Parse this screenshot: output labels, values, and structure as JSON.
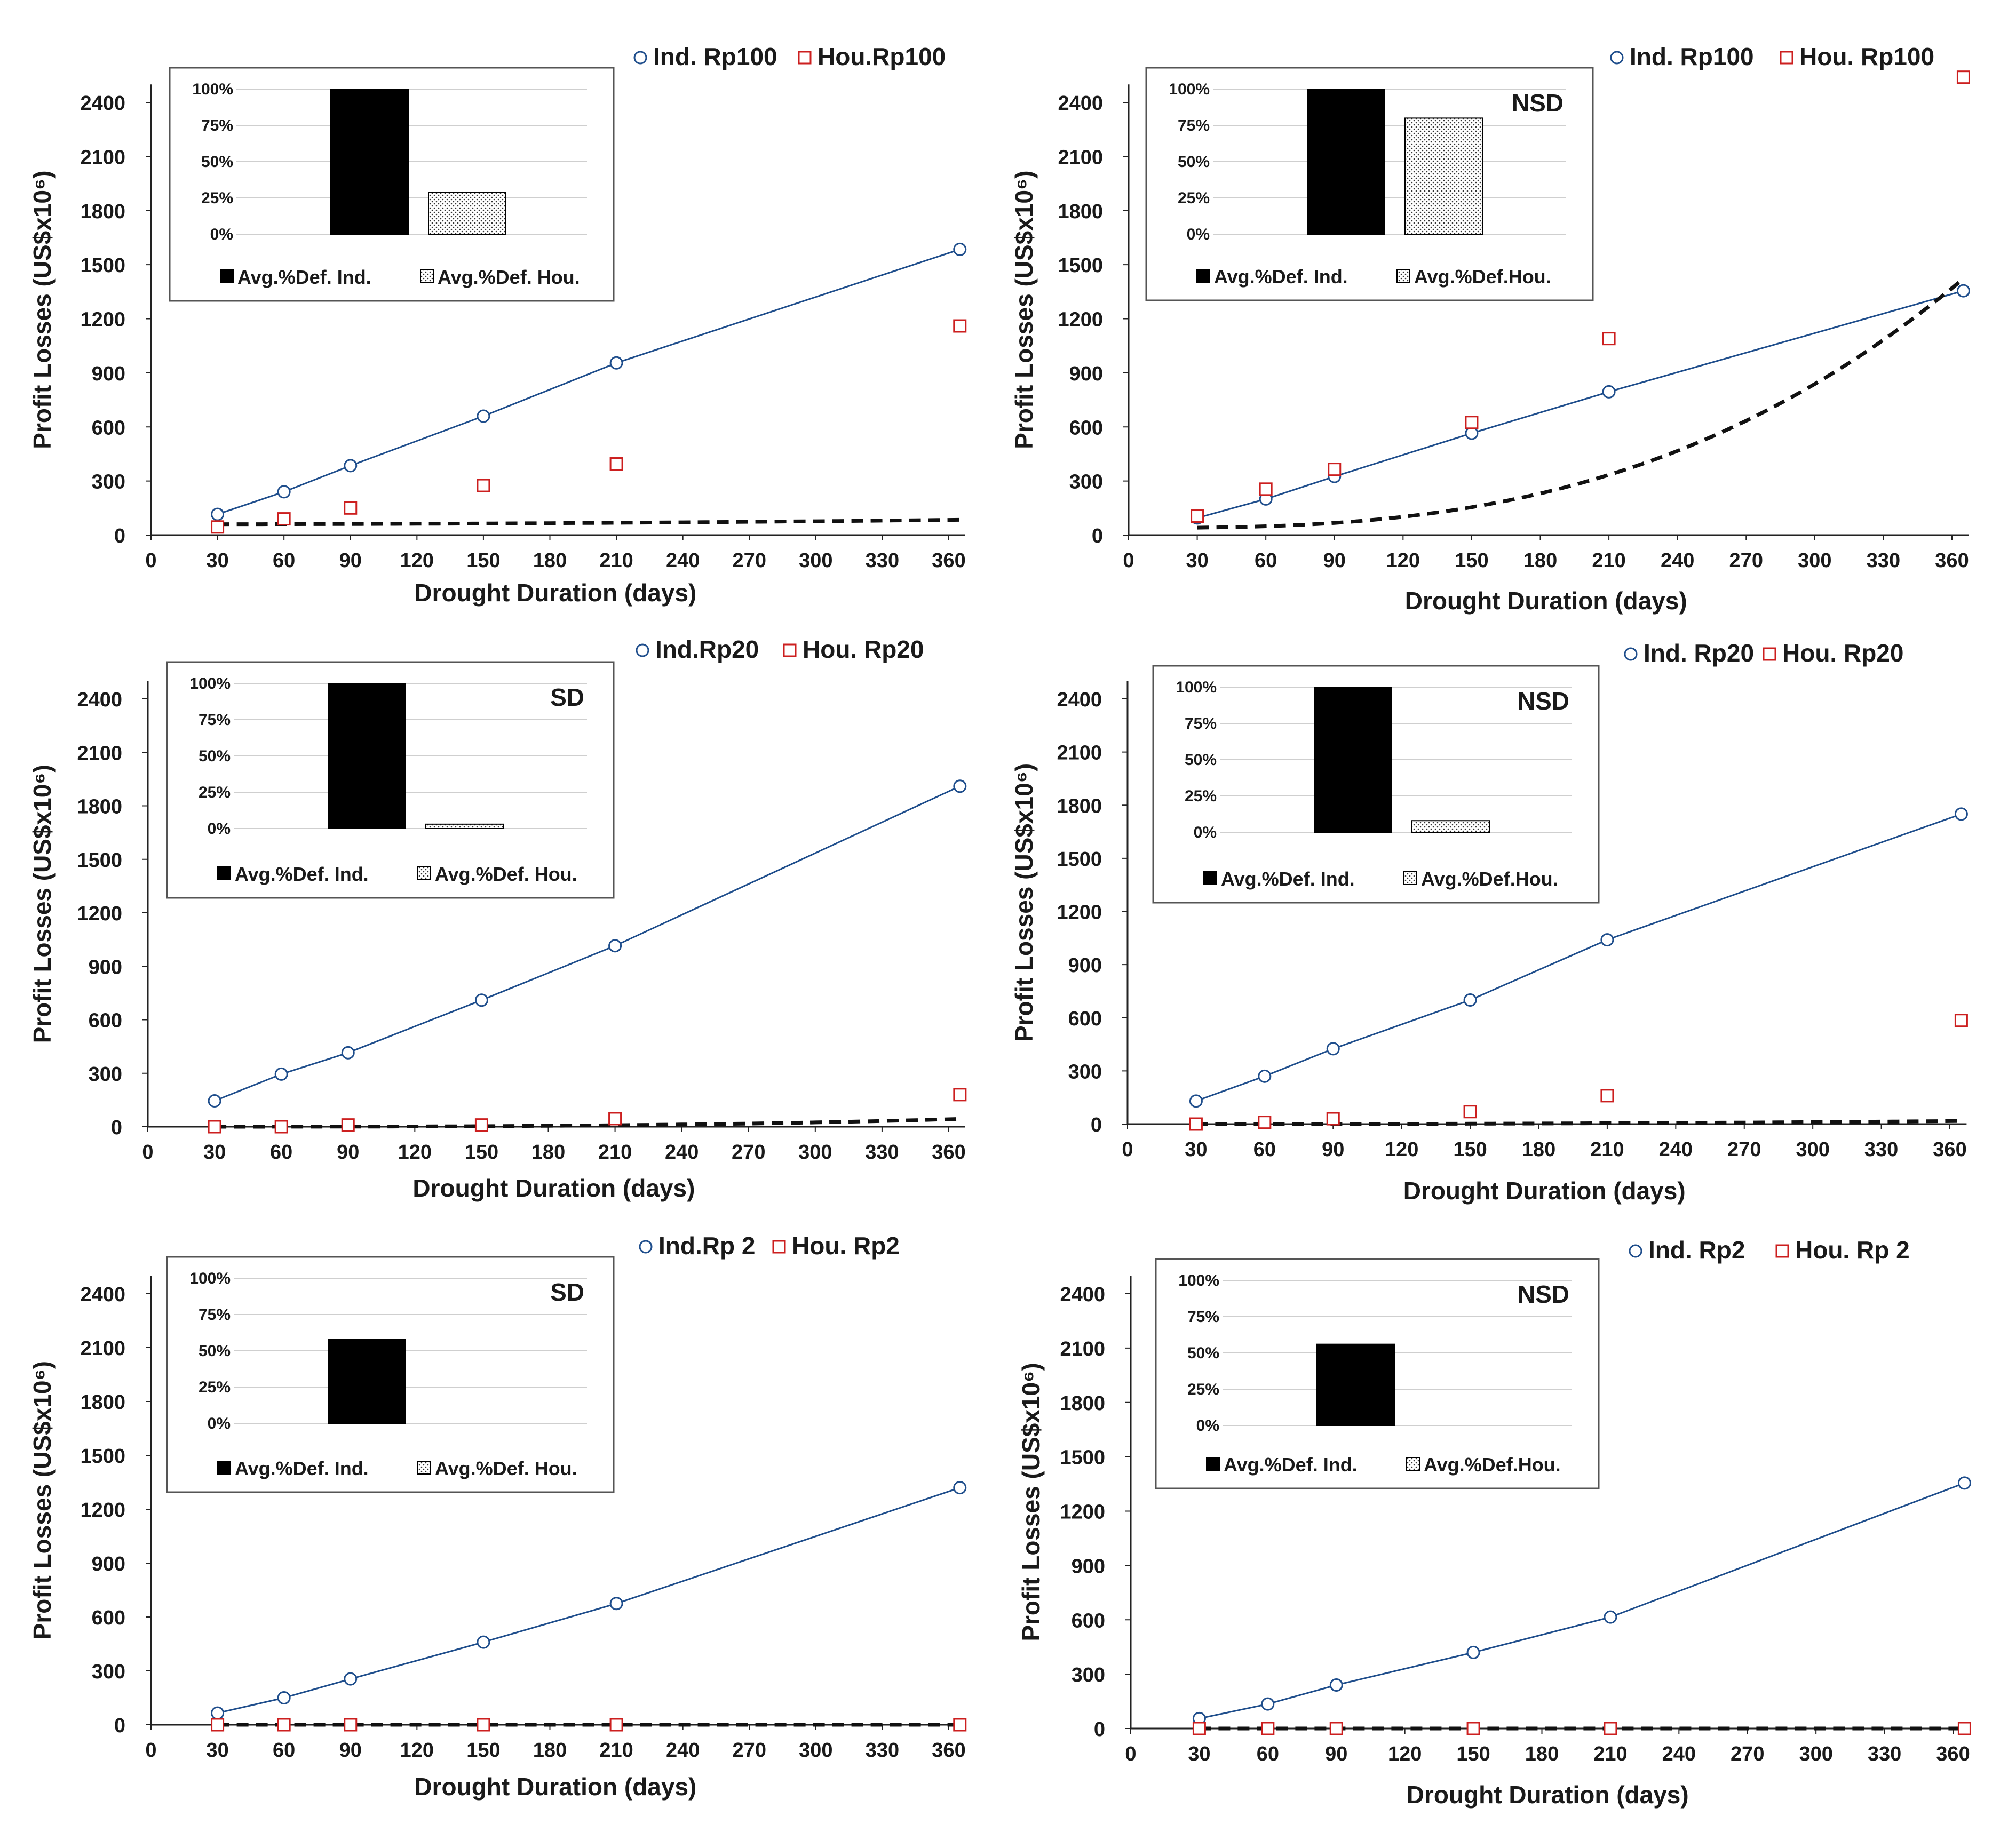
{
  "chart_data": [
    {
      "type": "line",
      "panel": "top-left",
      "xlabel": "Drought Duration (days)",
      "ylabel": "Profit Losses (US$x10⁶)",
      "xlim": [
        0,
        365
      ],
      "ylim": [
        0,
        2500
      ],
      "xticks": [
        "0",
        "30",
        "60",
        "90",
        "120",
        "150",
        "180",
        "210",
        "240",
        "270",
        "300",
        "330",
        "360"
      ],
      "yticks": [
        "0",
        "300",
        "600",
        "900",
        "1200",
        "1500",
        "1800",
        "2100",
        "2400"
      ],
      "x": [
        30,
        60,
        90,
        150,
        210,
        365
      ],
      "series": [
        {
          "name": "Ind. Rp100",
          "values": [
            115,
            240,
            385,
            660,
            955,
            1585
          ],
          "color": "#1f4e8c",
          "marker": "circle",
          "line": "solid"
        },
        {
          "name": "Hou.Rp100",
          "values": [
            45,
            90,
            150,
            275,
            395,
            1160
          ],
          "color": "#cc1f1f",
          "marker": "square",
          "line": "dashed",
          "fit": {
            "a": 60,
            "b": 0.0001866,
            "c": 2
          }
        }
      ],
      "inset": {
        "type": "bar",
        "tag": "",
        "yticks": [
          "0%",
          "25%",
          "50%",
          "75%",
          "100%"
        ],
        "categories": [
          "Avg.%Def. Ind.",
          "Avg.%Def. Hou."
        ],
        "values": [
          100,
          29
        ]
      }
    },
    {
      "type": "line",
      "panel": "top-right",
      "xlabel": "Drought Duration (days)",
      "ylabel": "Profit Losses (US$x10⁶)",
      "xlim": [
        0,
        365
      ],
      "ylim": [
        0,
        2500
      ],
      "xticks": [
        "0",
        "30",
        "60",
        "90",
        "120",
        "150",
        "180",
        "210",
        "240",
        "270",
        "300",
        "330",
        "360"
      ],
      "yticks": [
        "0",
        "300",
        "600",
        "900",
        "1200",
        "1500",
        "1800",
        "2100",
        "2400"
      ],
      "x": [
        30,
        60,
        90,
        150,
        210,
        365
      ],
      "series": [
        {
          "name": "Ind. Rp100",
          "values": [
            95,
            200,
            325,
            565,
            795,
            1355
          ],
          "color": "#1f4e8c",
          "marker": "circle",
          "line": "solid"
        },
        {
          "name": "Hou. Rp100",
          "values": [
            105,
            255,
            365,
            625,
            1090,
            2540
          ],
          "color": "#cc1f1f",
          "marker": "square",
          "line": "dashed",
          "fit": {
            "a": 40,
            "b": 9.25e-05,
            "c": 2.8
          }
        }
      ],
      "inset": {
        "type": "bar",
        "tag": "NSD",
        "yticks": [
          "0%",
          "25%",
          "50%",
          "75%",
          "100%"
        ],
        "categories": [
          "Avg.%Def. Ind.",
          "Avg.%Def.Hou."
        ],
        "values": [
          100,
          80
        ]
      }
    },
    {
      "type": "line",
      "panel": "middle-left",
      "xlabel": "Drought Duration (days)",
      "ylabel": "Profit Losses (US$x10⁶)",
      "xlim": [
        0,
        365
      ],
      "ylim": [
        0,
        2500
      ],
      "xticks": [
        "0",
        "30",
        "60",
        "90",
        "120",
        "150",
        "180",
        "210",
        "240",
        "270",
        "300",
        "330",
        "360"
      ],
      "yticks": [
        "0",
        "300",
        "600",
        "900",
        "1200",
        "1500",
        "1800",
        "2100",
        "2400"
      ],
      "x": [
        30,
        60,
        90,
        150,
        210,
        365
      ],
      "series": [
        {
          "name": "Ind.Rp20",
          "values": [
            145,
            295,
            415,
            710,
            1015,
            1910
          ],
          "color": "#1f4e8c",
          "marker": "circle",
          "line": "solid"
        },
        {
          "name": "Hou. Rp20",
          "values": [
            0,
            0,
            10,
            10,
            45,
            180
          ],
          "color": "#cc1f1f",
          "marker": "square",
          "line": "dashed",
          "fit": {
            "a": 0,
            "b": 9e-07,
            "c": 3
          }
        }
      ],
      "inset": {
        "type": "bar",
        "tag": "SD",
        "yticks": [
          "0%",
          "25%",
          "50%",
          "75%",
          "100%"
        ],
        "categories": [
          "Avg.%Def. Ind.",
          "Avg.%Def. Hou."
        ],
        "values": [
          100,
          3
        ]
      }
    },
    {
      "type": "line",
      "panel": "middle-right",
      "xlabel": "Drought Duration (days)",
      "ylabel": "Profit Losses (US$x10⁶)",
      "xlim": [
        0,
        365
      ],
      "ylim": [
        0,
        2500
      ],
      "xticks": [
        "0",
        "30",
        "60",
        "90",
        "120",
        "150",
        "180",
        "210",
        "240",
        "270",
        "300",
        "330",
        "360"
      ],
      "yticks": [
        "0",
        "300",
        "600",
        "900",
        "1200",
        "1500",
        "1800",
        "2100",
        "2400"
      ],
      "x": [
        30,
        60,
        90,
        150,
        210,
        365
      ],
      "series": [
        {
          "name": "Ind. Rp20",
          "values": [
            130,
            270,
            425,
            700,
            1040,
            1750
          ],
          "color": "#1f4e8c",
          "marker": "circle",
          "line": "solid"
        },
        {
          "name": "Hou. Rp20",
          "values": [
            0,
            10,
            30,
            70,
            160,
            585
          ],
          "color": "#cc1f1f",
          "marker": "square",
          "line": "dashed",
          "fit": {
            "a": 0,
            "b": 1.24e-05,
            "c": 2.4
          }
        }
      ],
      "inset": {
        "type": "bar",
        "tag": "NSD",
        "yticks": [
          "0%",
          "25%",
          "50%",
          "75%",
          "100%"
        ],
        "categories": [
          "Avg.%Def. Ind.",
          "Avg.%Def.Hou."
        ],
        "values": [
          100,
          8
        ]
      }
    },
    {
      "type": "line",
      "panel": "bottom-left",
      "xlabel": "Drought Duration (days)",
      "ylabel": "Profit Losses (US$x10⁶)",
      "xlim": [
        0,
        365
      ],
      "ylim": [
        0,
        2500
      ],
      "xticks": [
        "0",
        "30",
        "60",
        "90",
        "120",
        "150",
        "180",
        "210",
        "240",
        "270",
        "300",
        "330",
        "360"
      ],
      "yticks": [
        "0",
        "300",
        "600",
        "900",
        "1200",
        "1500",
        "1800",
        "2100",
        "2400"
      ],
      "x": [
        30,
        60,
        90,
        150,
        210,
        365
      ],
      "series": [
        {
          "name": "Ind.Rp 2",
          "values": [
            65,
            150,
            255,
            460,
            675,
            1320
          ],
          "color": "#1f4e8c",
          "marker": "circle",
          "line": "solid"
        },
        {
          "name": "Hou. Rp2",
          "values": [
            0,
            0,
            0,
            0,
            0,
            0
          ],
          "color": "#cc1f1f",
          "marker": "square",
          "line": "dashed",
          "fit": {
            "a": 0,
            "b": 0,
            "c": 1
          }
        }
      ],
      "inset": {
        "type": "bar",
        "tag": "SD",
        "yticks": [
          "0%",
          "25%",
          "50%",
          "75%",
          "100%"
        ],
        "categories": [
          "Avg.%Def. Ind.",
          "Avg.%Def. Hou."
        ],
        "values": [
          58,
          0
        ]
      }
    },
    {
      "type": "line",
      "panel": "bottom-right",
      "xlabel": "Drought Duration (days)",
      "ylabel": "Profit Losses (US$x10⁶)",
      "xlim": [
        0,
        365
      ],
      "ylim": [
        0,
        2500
      ],
      "xticks": [
        "0",
        "30",
        "60",
        "90",
        "120",
        "150",
        "180",
        "210",
        "240",
        "270",
        "300",
        "330",
        "360"
      ],
      "yticks": [
        "0",
        "300",
        "600",
        "900",
        "1200",
        "1500",
        "1800",
        "2100",
        "2400"
      ],
      "x": [
        30,
        60,
        90,
        150,
        210,
        365
      ],
      "series": [
        {
          "name": "Ind. Rp2",
          "values": [
            55,
            135,
            240,
            420,
            615,
            1355
          ],
          "color": "#1f4e8c",
          "marker": "circle",
          "line": "solid"
        },
        {
          "name": "Hou. Rp 2",
          "values": [
            0,
            0,
            0,
            0,
            0,
            0
          ],
          "color": "#cc1f1f",
          "marker": "square",
          "line": "dashed",
          "fit": {
            "a": 0,
            "b": 0,
            "c": 1
          }
        }
      ],
      "inset": {
        "type": "bar",
        "tag": "NSD",
        "yticks": [
          "0%",
          "25%",
          "50%",
          "75%",
          "100%"
        ],
        "categories": [
          "Avg.%Def. Ind.",
          "Avg.%Def.Hou."
        ],
        "values": [
          56,
          0
        ]
      }
    }
  ]
}
